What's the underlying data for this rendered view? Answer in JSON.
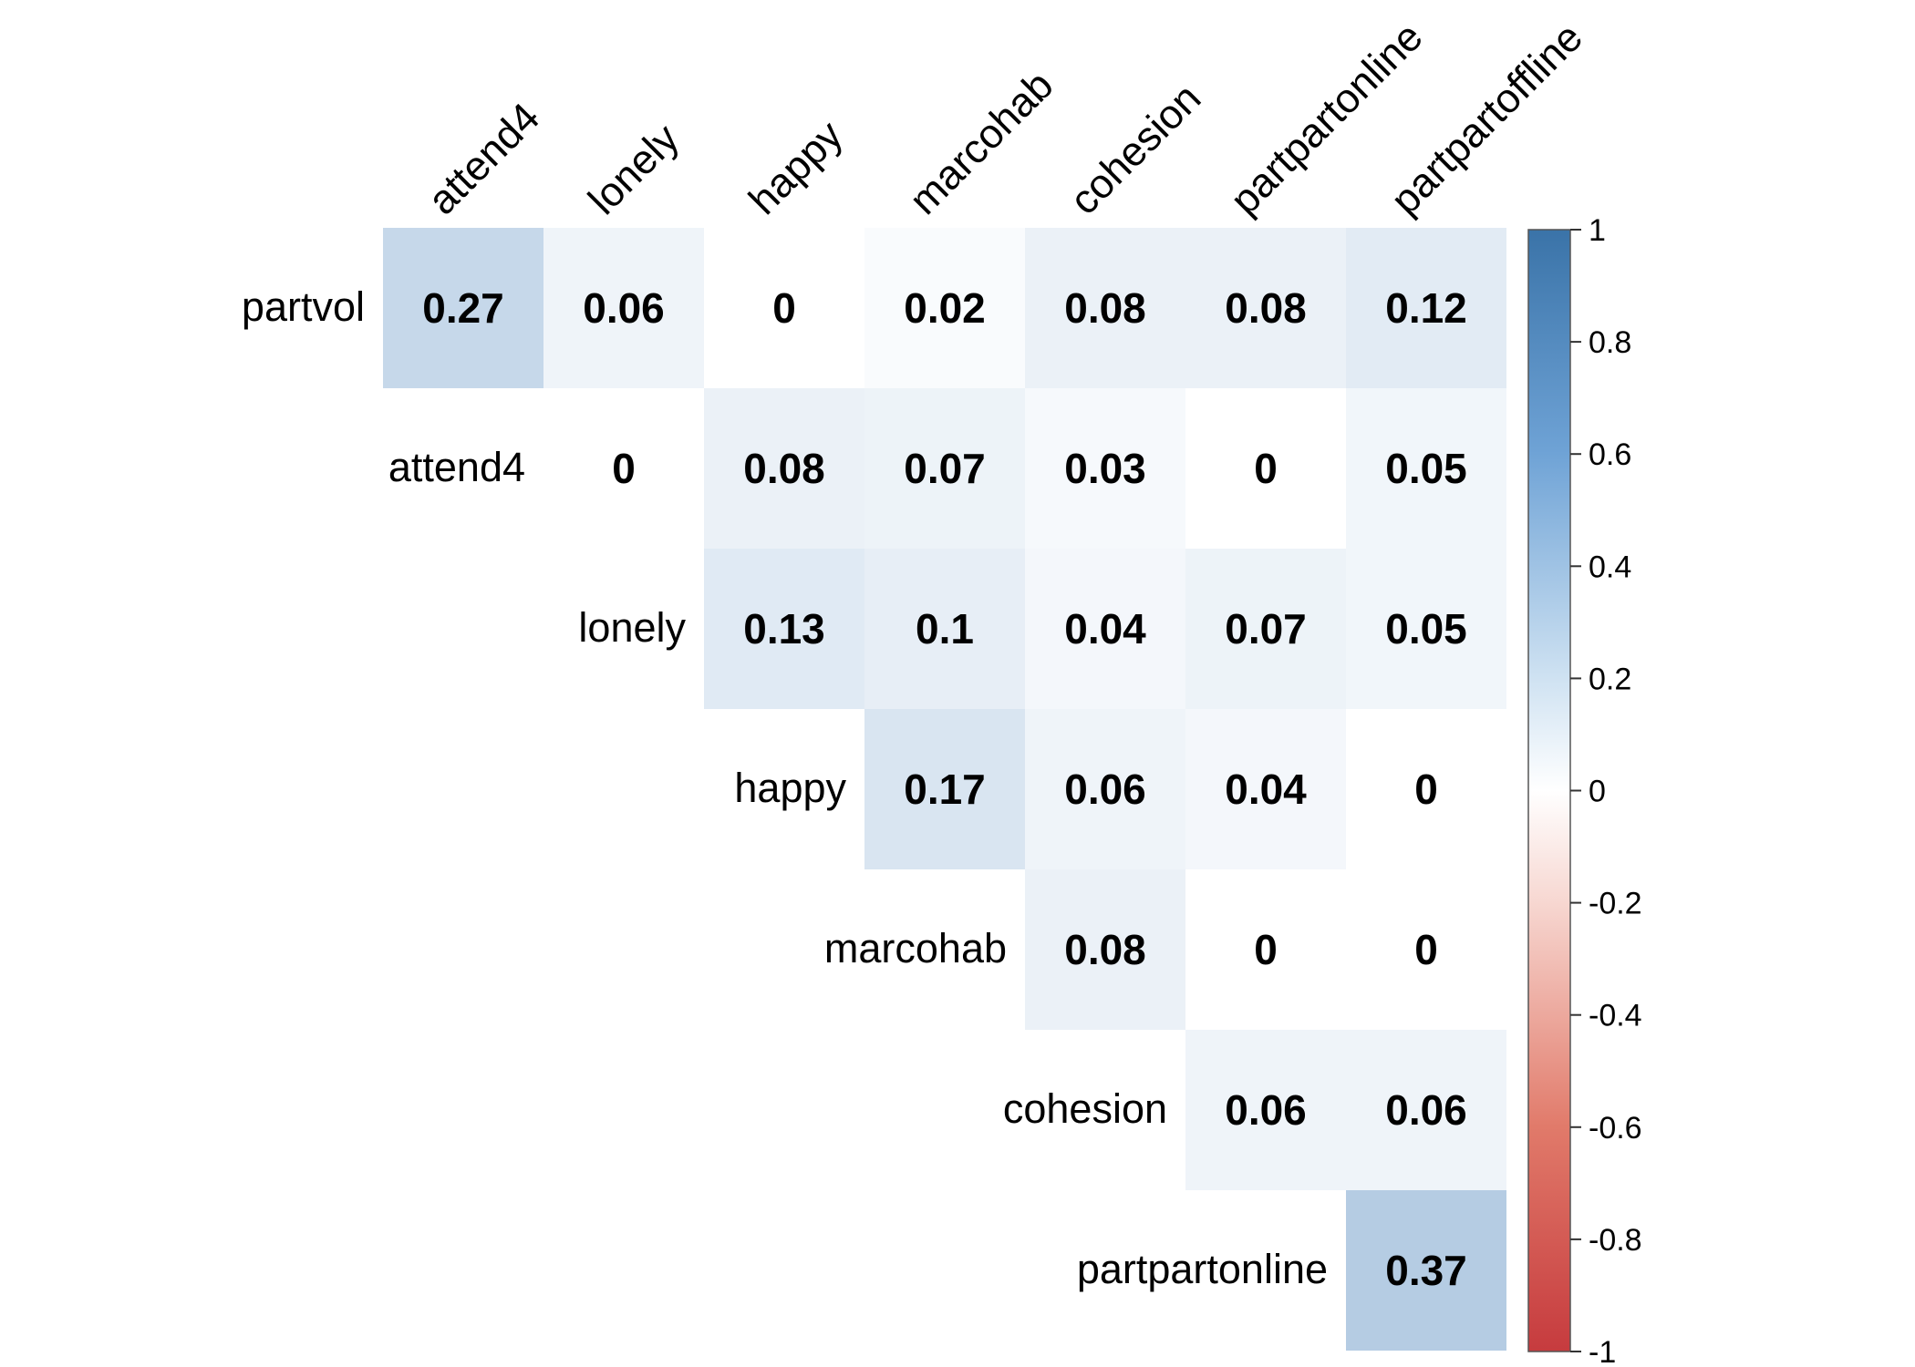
{
  "chart_data": {
    "type": "heatmap",
    "layout": "upper-triangle",
    "row_labels": [
      "partvol",
      "attend4",
      "lonely",
      "happy",
      "marcohab",
      "cohesion",
      "partpartonline"
    ],
    "col_labels": [
      "attend4",
      "lonely",
      "happy",
      "marcohab",
      "cohesion",
      "partpartonline",
      "partpartoffline"
    ],
    "values": [
      [
        0.27,
        0.06,
        0,
        0.02,
        0.08,
        0.08,
        0.12
      ],
      [
        null,
        0,
        0.08,
        0.07,
        0.03,
        0,
        0.05
      ],
      [
        null,
        null,
        0.13,
        0.1,
        0.04,
        0.07,
        0.05
      ],
      [
        null,
        null,
        null,
        0.17,
        0.06,
        0.04,
        0
      ],
      [
        null,
        null,
        null,
        null,
        0.08,
        0,
        0
      ],
      [
        null,
        null,
        null,
        null,
        null,
        0.06,
        0.06
      ],
      [
        null,
        null,
        null,
        null,
        null,
        null,
        0.37
      ]
    ],
    "value_labels": [
      [
        "0.27",
        "0.06",
        "0",
        "0.02",
        "0.08",
        "0.08",
        "0.12"
      ],
      [
        "",
        "0",
        "0.08",
        "0.07",
        "0.03",
        "0",
        "0.05"
      ],
      [
        "",
        "",
        "0.13",
        "0.1",
        "0.04",
        "0.07",
        "0.05"
      ],
      [
        "",
        "",
        "",
        "0.17",
        "0.06",
        "0.04",
        "0"
      ],
      [
        "",
        "",
        "",
        "",
        "0.08",
        "0",
        "0"
      ],
      [
        "",
        "",
        "",
        "",
        "",
        "0.06",
        "0.06"
      ],
      [
        "",
        "",
        "",
        "",
        "",
        "",
        "0.37"
      ]
    ],
    "color_scale": {
      "range": [
        -1,
        1
      ],
      "negative_color": "#B2182B",
      "zero_color": "#FFFFFF",
      "positive_color": "#2166AC"
    },
    "colorbar": {
      "position": "right",
      "ticks": [
        1,
        0.8,
        0.6,
        0.4,
        0.2,
        0,
        -0.2,
        -0.4,
        -0.6,
        -0.8,
        -1
      ],
      "tick_labels": [
        "1",
        "0.8",
        "0.6",
        "0.4",
        "0.2",
        "0",
        "-0.2",
        "-0.4",
        "-0.6",
        "-0.8",
        "-1"
      ]
    },
    "grid": false
  }
}
